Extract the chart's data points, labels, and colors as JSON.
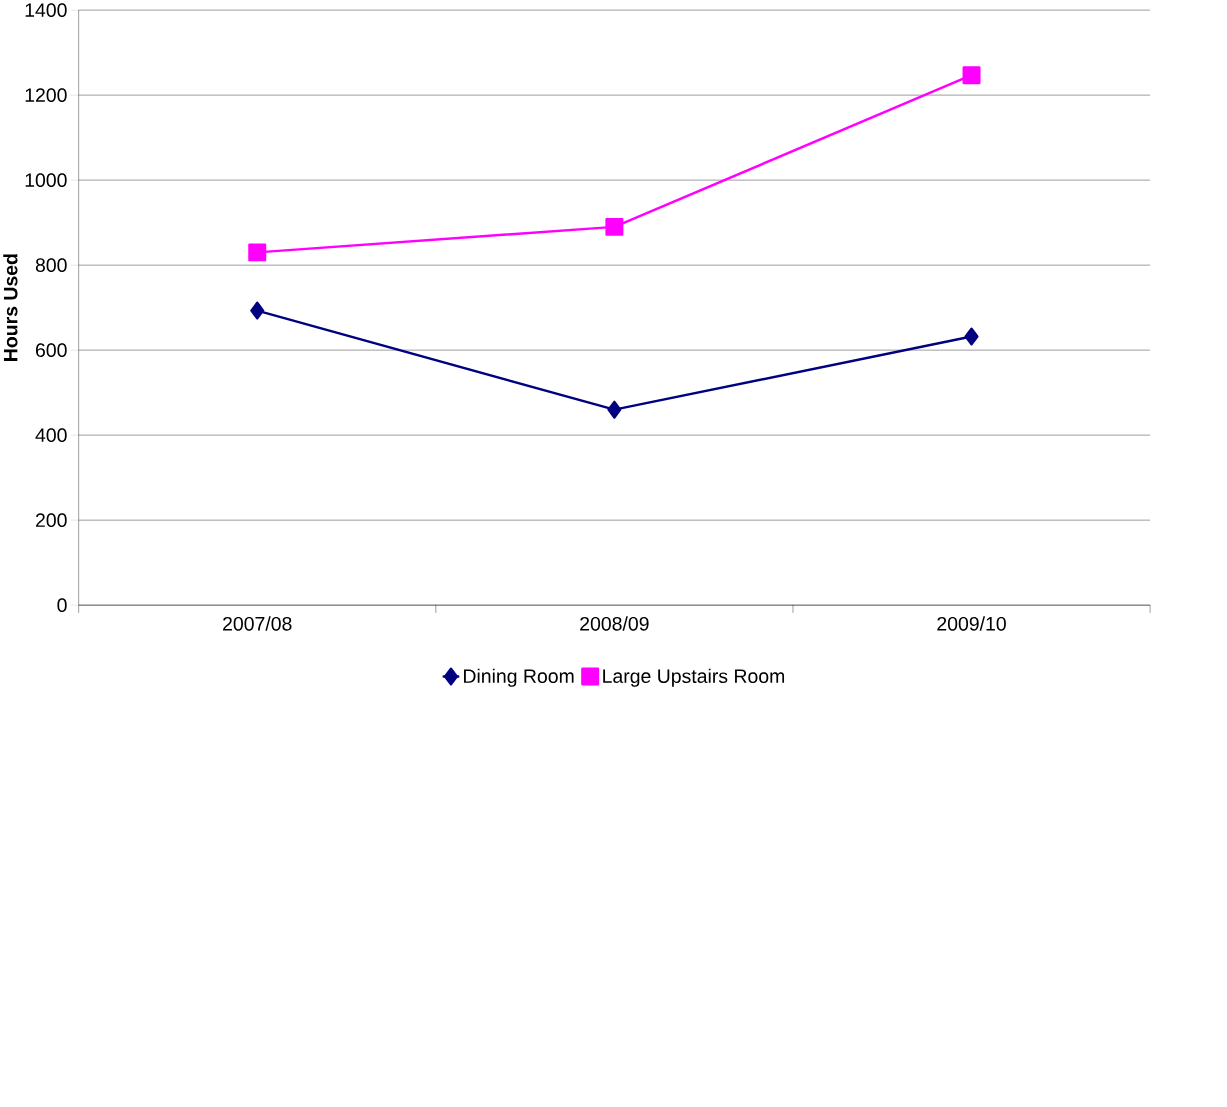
{
  "chart_data": {
    "type": "line",
    "ylabel": "Hours Used",
    "categories": [
      "2007/08",
      "2008/09",
      "2009/10"
    ],
    "series": [
      {
        "name": "Dining Room",
        "color": "#000080",
        "marker": "diamond",
        "values": [
          693,
          460,
          632
        ]
      },
      {
        "name": "Large Upstairs Room",
        "color": "#ff00ff",
        "marker": "square",
        "values": [
          830,
          890,
          1247
        ]
      }
    ],
    "ylim": [
      0,
      1400
    ],
    "yticks": [
      0,
      200,
      400,
      600,
      800,
      1000,
      1200,
      1400
    ],
    "grid": "y",
    "legend": "bottom",
    "line_style": "solid"
  }
}
